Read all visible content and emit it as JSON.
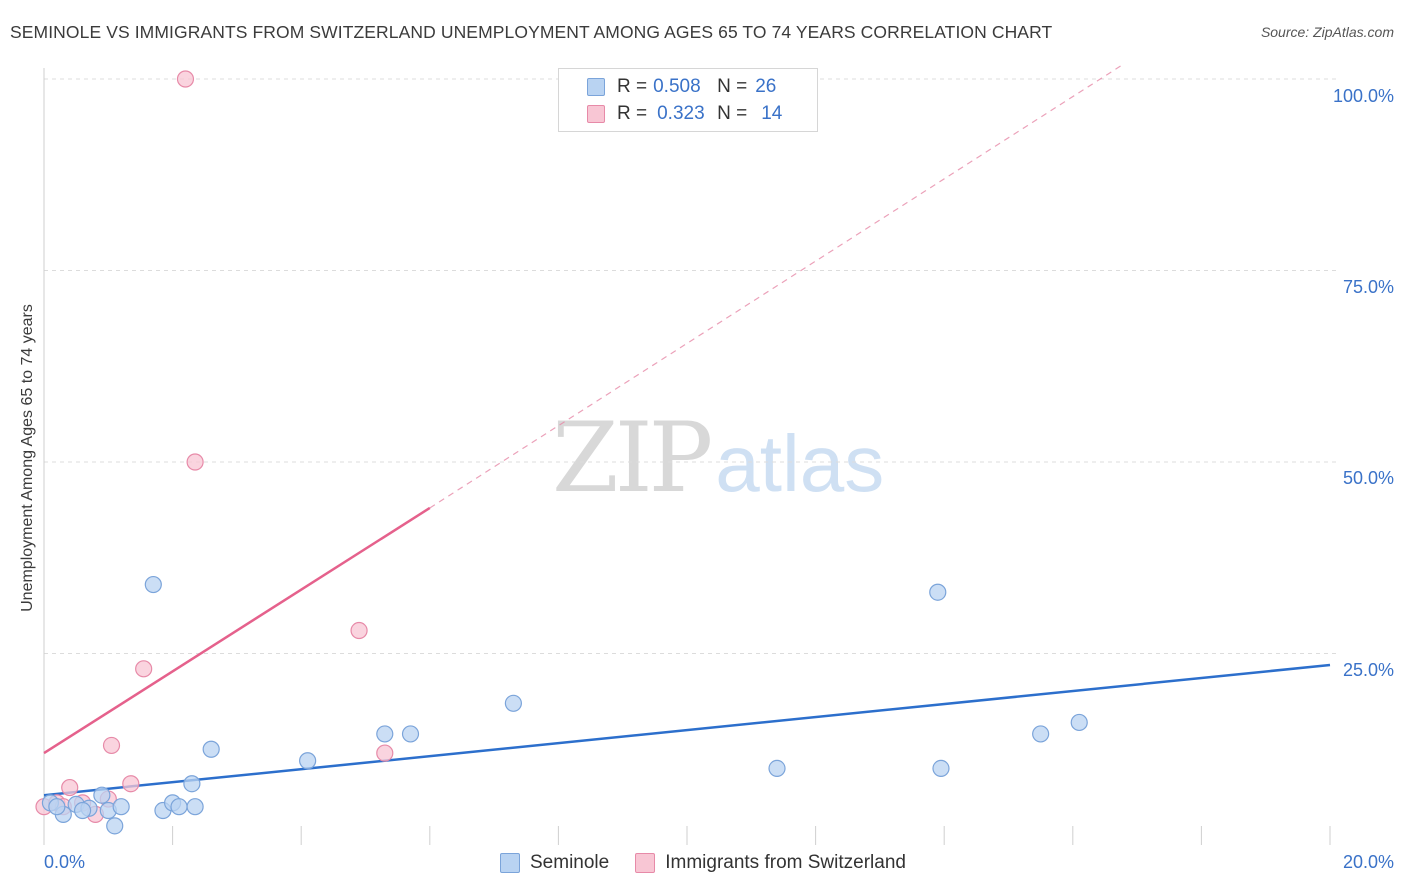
{
  "title": "SEMINOLE VS IMMIGRANTS FROM SWITZERLAND UNEMPLOYMENT AMONG AGES 65 TO 74 YEARS CORRELATION CHART",
  "source": "Source: ZipAtlas.com",
  "watermark": {
    "zip": "ZIP",
    "atlas": "atlas"
  },
  "colors": {
    "blue_fill": "#b9d3f2",
    "blue_stroke": "#7ba4da",
    "blue_line": "#2c6fcc",
    "pink_fill": "#f8c6d4",
    "pink_stroke": "#e78aa8",
    "pink_line": "#e5618c",
    "grid": "#dcdcdc",
    "axis_text": "#3a72c8"
  },
  "legend_stats": [
    {
      "label_r": "R =",
      "r": "0.508",
      "label_n": "N =",
      "n": "26",
      "series": "blue"
    },
    {
      "label_r": "R =",
      "r": "0.323",
      "label_n": "N =",
      "n": "14",
      "series": "pink"
    }
  ],
  "legend_bottom": [
    "Seminole",
    "Immigrants from Switzerland"
  ],
  "y_ticks": [
    "100.0%",
    "75.0%",
    "50.0%",
    "25.0%"
  ],
  "x_ticks": [
    "0.0%",
    "20.0%"
  ],
  "chart_data": {
    "type": "scatter",
    "title": "SEMINOLE VS IMMIGRANTS FROM SWITZERLAND UNEMPLOYMENT AMONG AGES 65 TO 74 YEARS CORRELATION CHART",
    "xlabel": "",
    "ylabel": "Unemployment Among Ages 65 to 74 years",
    "xlim": [
      0,
      20
    ],
    "ylim": [
      0,
      102
    ],
    "x_unit": "%",
    "y_unit": "%",
    "series": [
      {
        "name": "Seminole",
        "color": "blue",
        "points": [
          [
            0.1,
            5.5
          ],
          [
            0.3,
            4.0
          ],
          [
            0.5,
            5.3
          ],
          [
            0.7,
            4.8
          ],
          [
            0.9,
            6.5
          ],
          [
            1.0,
            4.5
          ],
          [
            1.1,
            2.5
          ],
          [
            1.7,
            34.0
          ],
          [
            1.85,
            4.5
          ],
          [
            2.0,
            5.5
          ],
          [
            2.1,
            5.0
          ],
          [
            2.3,
            8.0
          ],
          [
            2.35,
            5.0
          ],
          [
            2.6,
            12.5
          ],
          [
            4.1,
            11.0
          ],
          [
            5.3,
            14.5
          ],
          [
            5.7,
            14.5
          ],
          [
            7.3,
            18.5
          ],
          [
            11.4,
            10.0
          ],
          [
            13.9,
            33.0
          ],
          [
            13.95,
            10.0
          ],
          [
            15.5,
            14.5
          ],
          [
            16.1,
            16.0
          ],
          [
            0.2,
            5.0
          ],
          [
            0.6,
            4.5
          ],
          [
            1.2,
            5.0
          ]
        ],
        "trend": {
          "x": [
            0,
            20
          ],
          "y": [
            6.5,
            23.5
          ]
        }
      },
      {
        "name": "Immigrants from Switzerland",
        "color": "pink",
        "points": [
          [
            0.0,
            5.0
          ],
          [
            0.2,
            5.5
          ],
          [
            0.4,
            7.5
          ],
          [
            0.6,
            5.5
          ],
          [
            0.8,
            4.0
          ],
          [
            1.0,
            6.0
          ],
          [
            1.05,
            13.0
          ],
          [
            1.35,
            8.0
          ],
          [
            1.55,
            23.0
          ],
          [
            2.2,
            100.0
          ],
          [
            2.35,
            50.0
          ],
          [
            4.9,
            28.0
          ],
          [
            5.3,
            12.0
          ],
          [
            0.3,
            5.0
          ]
        ],
        "trend": {
          "x": [
            0,
            6
          ],
          "y": [
            12.0,
            44.0
          ],
          "dashed_to": {
            "x": 16.8,
            "y": 102
          }
        }
      }
    ]
  }
}
